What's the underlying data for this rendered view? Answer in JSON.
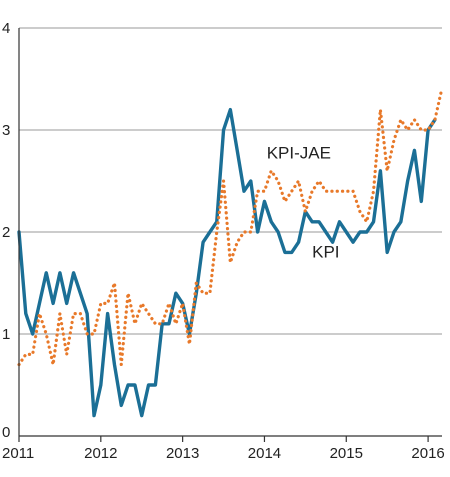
{
  "chart_data": {
    "type": "line",
    "title": "",
    "xlabel": "",
    "ylabel": "",
    "xlim": [
      2011.0,
      2016.17
    ],
    "ylim": [
      0,
      4
    ],
    "yticks": [
      0,
      1,
      2,
      3,
      4
    ],
    "xticks": [
      2011,
      2012,
      2013,
      2014,
      2015,
      2016
    ],
    "ytick_labels": [
      "0",
      "1",
      "2",
      "3",
      "4"
    ],
    "xtick_labels": [
      "2011",
      "2012",
      "2013",
      "2014",
      "2015",
      "2016"
    ],
    "grid": "horizontal",
    "legend": "inline labels",
    "series": [
      {
        "name": "KPI",
        "color": "#1b6f96",
        "style": "solid",
        "label_at": [
          2014.75,
          1.75
        ],
        "x": [
          2011.0,
          2011.083,
          2011.167,
          2011.25,
          2011.333,
          2011.417,
          2011.5,
          2011.583,
          2011.667,
          2011.75,
          2011.833,
          2011.917,
          2012.0,
          2012.083,
          2012.167,
          2012.25,
          2012.333,
          2012.417,
          2012.5,
          2012.583,
          2012.667,
          2012.75,
          2012.833,
          2012.917,
          2013.0,
          2013.083,
          2013.167,
          2013.25,
          2013.333,
          2013.417,
          2013.5,
          2013.583,
          2013.667,
          2013.75,
          2013.833,
          2013.917,
          2014.0,
          2014.083,
          2014.167,
          2014.25,
          2014.333,
          2014.417,
          2014.5,
          2014.583,
          2014.667,
          2014.75,
          2014.833,
          2014.917,
          2015.0,
          2015.083,
          2015.167,
          2015.25,
          2015.333,
          2015.417,
          2015.5,
          2015.583,
          2015.667,
          2015.75,
          2015.833,
          2015.917,
          2016.0,
          2016.083
        ],
        "values": [
          2.0,
          1.2,
          1.0,
          1.3,
          1.6,
          1.3,
          1.6,
          1.3,
          1.6,
          1.4,
          1.2,
          0.2,
          0.5,
          1.2,
          0.7,
          0.3,
          0.5,
          0.5,
          0.2,
          0.5,
          0.5,
          1.1,
          1.1,
          1.4,
          1.3,
          1.0,
          1.4,
          1.9,
          2.0,
          2.1,
          3.0,
          3.2,
          2.8,
          2.4,
          2.5,
          2.0,
          2.3,
          2.1,
          2.0,
          1.8,
          1.8,
          1.9,
          2.2,
          2.1,
          2.1,
          2.0,
          1.9,
          2.1,
          2.0,
          1.9,
          2.0,
          2.0,
          2.1,
          2.6,
          1.8,
          2.0,
          2.1,
          2.5,
          2.8,
          2.3,
          3.0,
          3.1
        ]
      },
      {
        "name": "KPI-JAE",
        "color": "#e8792a",
        "style": "dotted",
        "label_at": [
          2014.42,
          2.72
        ],
        "x": [
          2011.0,
          2011.083,
          2011.167,
          2011.25,
          2011.333,
          2011.417,
          2011.5,
          2011.583,
          2011.667,
          2011.75,
          2011.833,
          2011.917,
          2012.0,
          2012.083,
          2012.167,
          2012.25,
          2012.333,
          2012.417,
          2012.5,
          2012.583,
          2012.667,
          2012.75,
          2012.833,
          2012.917,
          2013.0,
          2013.083,
          2013.167,
          2013.25,
          2013.333,
          2013.417,
          2013.5,
          2013.583,
          2013.667,
          2013.75,
          2013.833,
          2013.917,
          2014.0,
          2014.083,
          2014.167,
          2014.25,
          2014.333,
          2014.417,
          2014.5,
          2014.583,
          2014.667,
          2014.75,
          2014.833,
          2014.917,
          2015.0,
          2015.083,
          2015.167,
          2015.25,
          2015.333,
          2015.417,
          2015.5,
          2015.583,
          2015.667,
          2015.75,
          2015.833,
          2015.917,
          2016.0,
          2016.083,
          2016.167
        ],
        "values": [
          0.7,
          0.8,
          0.8,
          1.2,
          1.0,
          0.7,
          1.2,
          0.8,
          1.2,
          1.2,
          1.0,
          1.0,
          1.3,
          1.3,
          1.5,
          0.7,
          1.4,
          1.1,
          1.3,
          1.2,
          1.1,
          1.1,
          1.3,
          1.1,
          1.3,
          0.9,
          1.5,
          1.4,
          1.4,
          2.0,
          2.5,
          1.7,
          1.9,
          2.0,
          2.0,
          2.4,
          2.4,
          2.6,
          2.5,
          2.3,
          2.4,
          2.5,
          2.2,
          2.4,
          2.5,
          2.4,
          2.4,
          2.4,
          2.4,
          2.4,
          2.2,
          2.1,
          2.4,
          3.2,
          2.6,
          2.9,
          3.1,
          3.0,
          3.1,
          3.0,
          3.0,
          3.1,
          3.4
        ]
      }
    ]
  }
}
